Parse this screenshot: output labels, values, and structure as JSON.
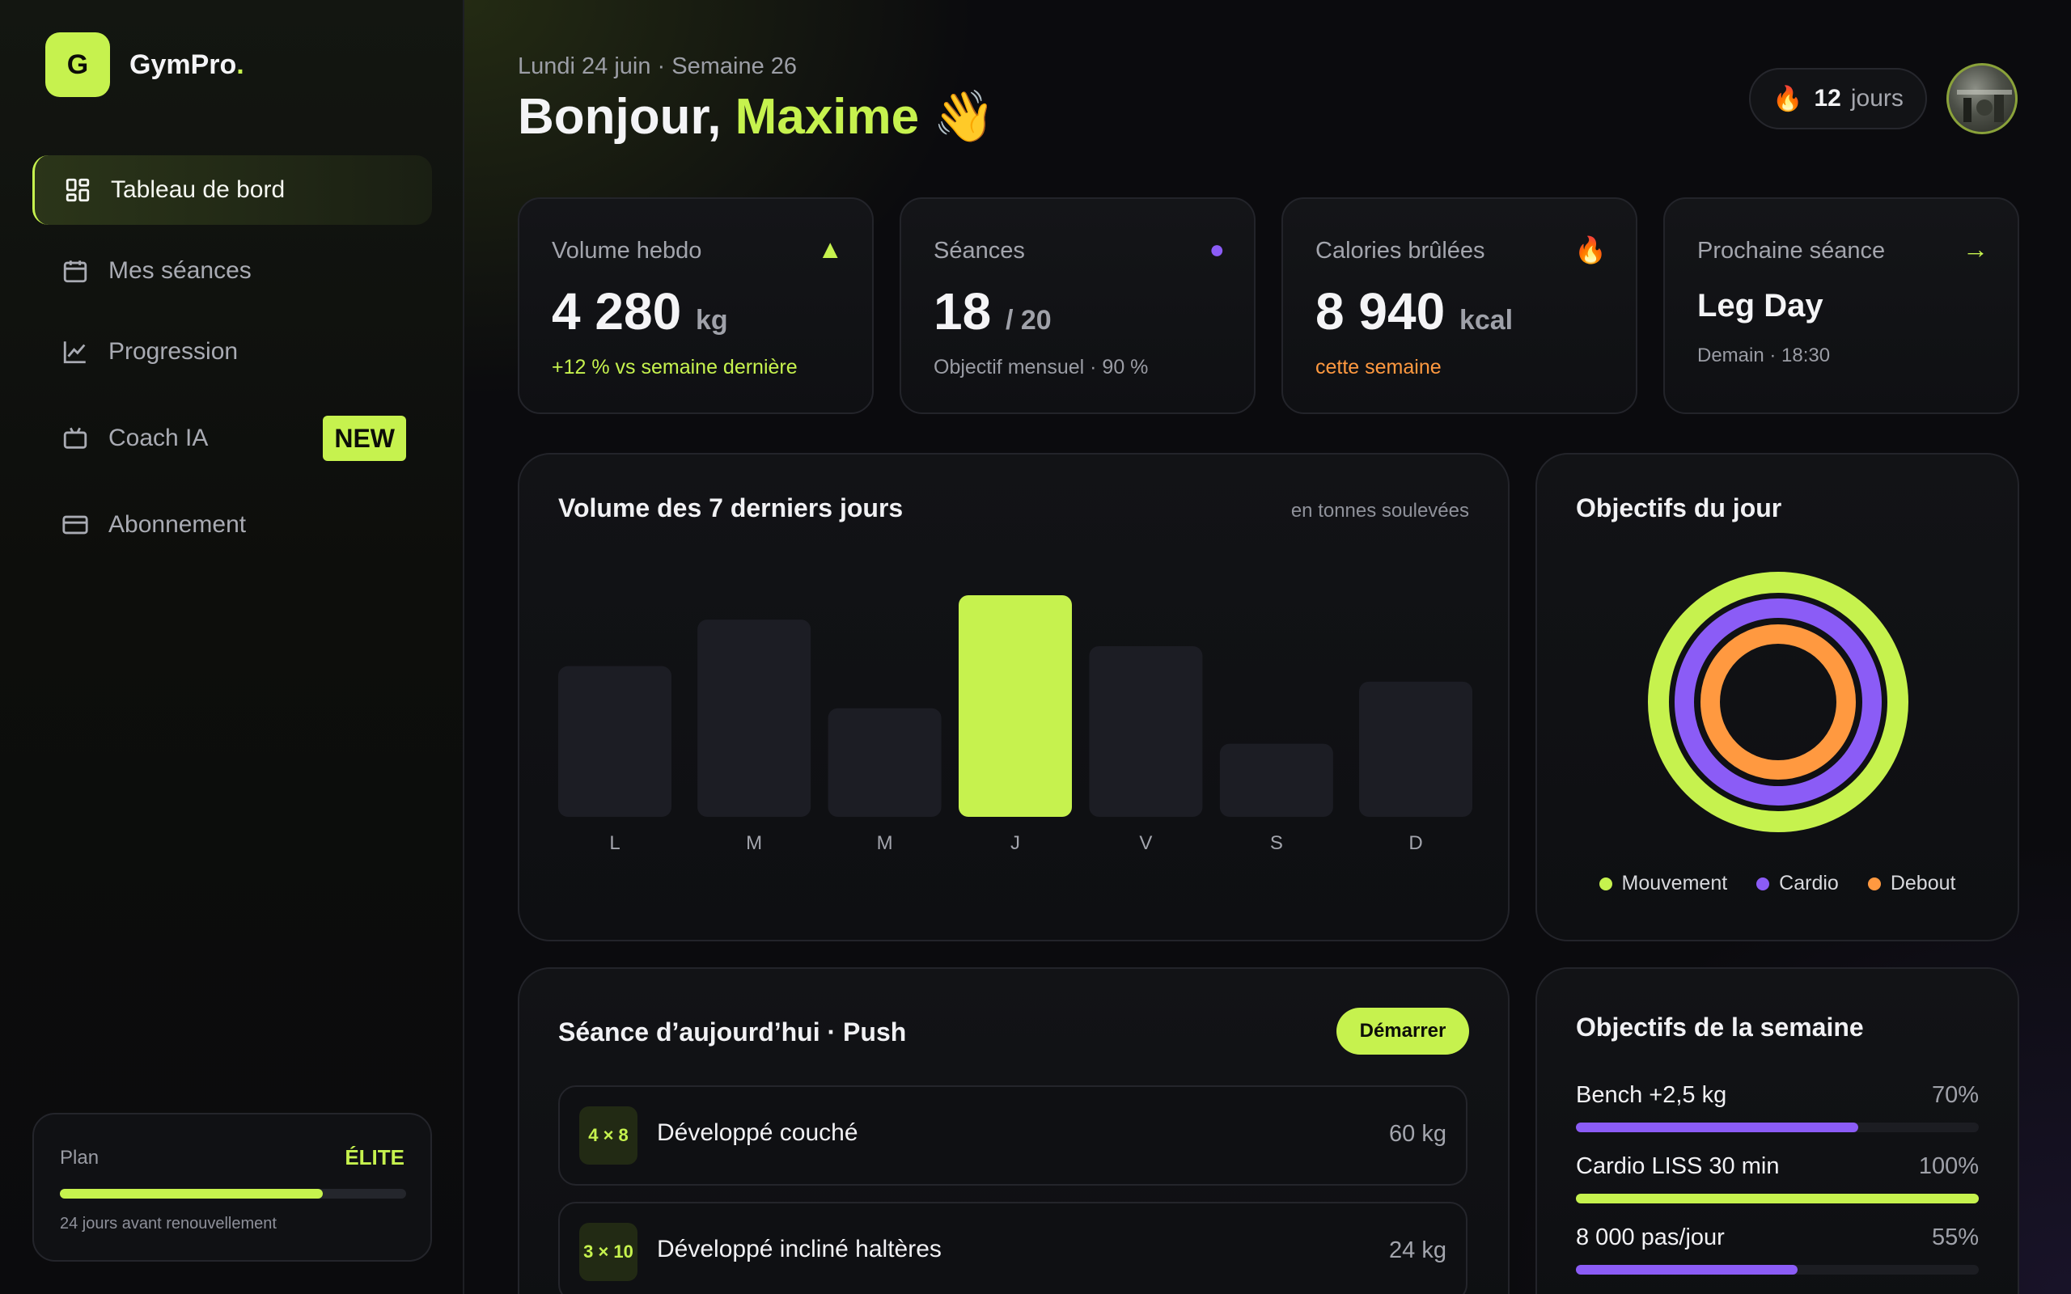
{
  "brand": {
    "logo_letter": "G",
    "name": "GymPro",
    "dot": "."
  },
  "nav": [
    {
      "label": "Tableau de bord",
      "icon": "dashboard-icon",
      "active": true
    },
    {
      "label": "Mes séances",
      "icon": "calendar-icon"
    },
    {
      "label": "Progression",
      "icon": "chart-line-icon"
    },
    {
      "label": "Coach IA",
      "icon": "robot-icon",
      "badge": "NEW"
    },
    {
      "label": "Abonnement",
      "icon": "credit-card-icon"
    }
  ],
  "plan": {
    "label": "Plan",
    "tier": "ÉLITE",
    "progress": 0.76,
    "renewal": "24 jours avant renouvellement"
  },
  "header": {
    "date": "Lundi 24 juin · Semaine 26",
    "greeting": "Bonjour, ",
    "name": "Maxime",
    "emoji": "👋"
  },
  "streak": {
    "icon": "🔥",
    "value": "12",
    "unit": "jours"
  },
  "stats": [
    {
      "label": "Volume hebdo",
      "icon": "▲",
      "icon_color": "#c6f24e",
      "value": "4 280",
      "unit": "kg",
      "sub": "+12 % vs semaine dernière"
    },
    {
      "label": "Séances",
      "icon": "●",
      "icon_color": "#8b5cf6",
      "value": "18",
      "unit": "/ 20",
      "sub": "Objectif mensuel · 90 %"
    },
    {
      "label": "Calories brûlées",
      "icon": "🔥",
      "icon_color": "#ff7a1a",
      "value": "8 940",
      "unit": "kcal",
      "sub": "cette semaine"
    },
    {
      "label": "Prochaine séance",
      "icon": "→",
      "icon_color": "#c6f24e",
      "value": "Leg Day",
      "sub": "Demain · 18:30"
    }
  ],
  "volume_panel": {
    "title": "Volume des 7 derniers jours",
    "hint": "en tonnes soulevées"
  },
  "rings_panel": {
    "title": "Objectifs du jour"
  },
  "colors": {
    "accent": "#c6f24e",
    "purple": "#8b5cf6",
    "orange": "#ff9940",
    "bar_idle": "#1c1d24"
  },
  "chart_data": [
    {
      "type": "bar",
      "title": "Volume des 7 derniers jours",
      "ylabel": "en tonnes soulevées",
      "categories": [
        "L",
        "M",
        "M",
        "J",
        "V",
        "S",
        "D"
      ],
      "values": [
        0.68,
        0.89,
        0.49,
        1.0,
        0.77,
        0.33,
        0.61
      ],
      "highlight_index": 3,
      "ylim": [
        0,
        1
      ]
    },
    {
      "type": "pie",
      "title": "Objectifs du jour",
      "series": [
        {
          "name": "Mouvement",
          "values": [
            1.0
          ],
          "color": "#c6f24e"
        },
        {
          "name": "Cardio",
          "values": [
            1.0
          ],
          "color": "#8b5cf6"
        },
        {
          "name": "Debout",
          "values": [
            1.0
          ],
          "color": "#ff9940"
        }
      ]
    }
  ],
  "session": {
    "title": "Séance d’aujourd’hui · Push",
    "start_label": "Démarrer",
    "exercises": [
      {
        "sets": "4 × 8",
        "name": "Développé couché",
        "weight": "60 kg"
      },
      {
        "sets": "3 × 10",
        "name": "Développé incliné haltères",
        "weight": "24 kg"
      }
    ]
  },
  "weekly_goals": {
    "title": "Objectifs de la semaine",
    "items": [
      {
        "label": "Bench +2,5 kg",
        "pct": "70%",
        "value": 0.7,
        "color": "#8b5cf6"
      },
      {
        "label": "Cardio LISS 30 min",
        "pct": "100%",
        "value": 1.0,
        "color": "#c6f24e"
      },
      {
        "label": "8 000 pas/jour",
        "pct": "55%",
        "value": 0.55,
        "color": "#8b5cf6"
      }
    ]
  }
}
